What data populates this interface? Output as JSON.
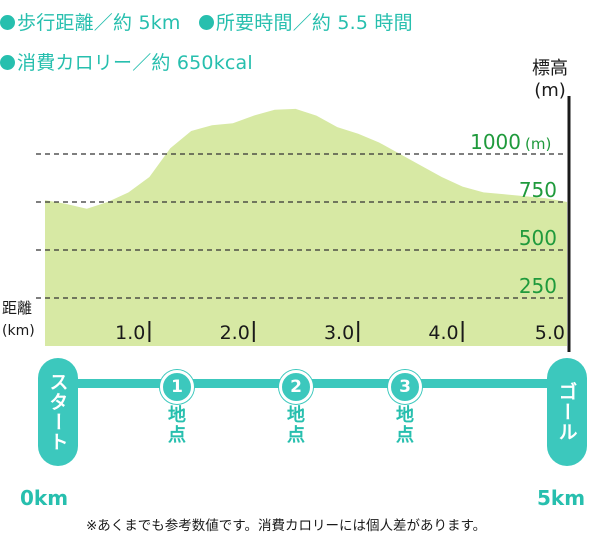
{
  "summary": {
    "walk_distance": "歩行距離／約 5km",
    "duration": "所要時間／約 5.5 時間",
    "calories": "消費カロリー／約 650kcal"
  },
  "route": {
    "start": "スタート",
    "goal": "ゴール",
    "points": [
      {
        "num": "1",
        "label": "地点"
      },
      {
        "num": "2",
        "label": "地点"
      },
      {
        "num": "3",
        "label": "地点"
      }
    ],
    "start_distance": "0km",
    "end_distance": "5km"
  },
  "note": "※あくまでも参考数値です。消費カロリーには個人差があります。",
  "colors": {
    "fill": "#d7e9a4",
    "accent": "#27bfae",
    "label_green": "#1f9a3c"
  },
  "chart_data": {
    "type": "area",
    "xlabel": "距離",
    "xunit": "(km)",
    "ylabel": "標高",
    "yunit": "(m)",
    "xlim": [
      0,
      5
    ],
    "ylim": [
      0,
      1300
    ],
    "x_ticks": [
      "1.0",
      "2.0",
      "3.0",
      "4.0",
      "5.0"
    ],
    "y_ticks": [
      {
        "value": 250,
        "label": "250"
      },
      {
        "value": 500,
        "label": "500"
      },
      {
        "value": 750,
        "label": "750"
      },
      {
        "value": 1000,
        "label": "1000",
        "unit": "(m)"
      }
    ],
    "gridlines": "dashed",
    "series": [
      {
        "x": [
          0,
          0.2,
          0.4,
          0.6,
          0.8,
          1.0,
          1.2,
          1.4,
          1.6,
          1.8,
          2.0,
          2.2,
          2.4,
          2.6,
          2.8,
          3.0,
          3.2,
          3.4,
          3.6,
          3.8,
          4.0,
          4.2,
          4.4,
          4.6,
          4.8,
          5.0
        ],
        "y": [
          760,
          740,
          715,
          750,
          800,
          880,
          1030,
          1120,
          1150,
          1160,
          1200,
          1230,
          1235,
          1200,
          1140,
          1105,
          1060,
          1000,
          940,
          880,
          830,
          800,
          790,
          780,
          770,
          750
        ]
      }
    ]
  }
}
